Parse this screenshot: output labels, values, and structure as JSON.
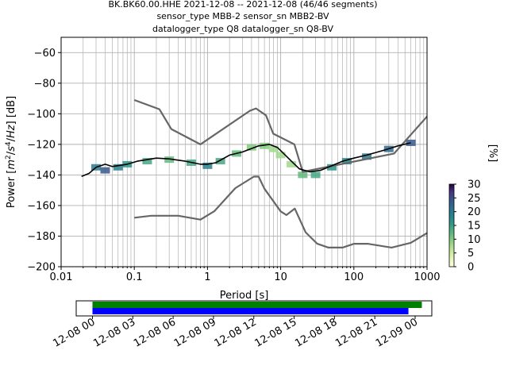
{
  "title": {
    "line1": "BK.BK60.00.HHE   2021-12-08 -- 2021-12-08  (46/46 segments)",
    "line2": "sensor_type MBB-2 sensor_sn MBB2-BV",
    "line3": "datalogger_type Q8 datalogger_sn Q8-BV"
  },
  "chart_data": [
    {
      "type": "heatmap",
      "xlabel": "Period [s]",
      "xscale": "log",
      "xlim": [
        0.01,
        1000
      ],
      "xticks": [
        {
          "value": 0.01,
          "label": "0.01"
        },
        {
          "value": 0.1,
          "label": "0.1"
        },
        {
          "value": 1,
          "label": "1"
        },
        {
          "value": 10,
          "label": "10"
        },
        {
          "value": 100,
          "label": "100"
        },
        {
          "value": 1000,
          "label": "1000"
        }
      ],
      "ylim": [
        -200,
        -50
      ],
      "yticks": [
        {
          "value": -60,
          "label": "−60"
        },
        {
          "value": -80,
          "label": "−80"
        },
        {
          "value": -100,
          "label": "−100"
        },
        {
          "value": -120,
          "label": "−120"
        },
        {
          "value": -140,
          "label": "−140"
        },
        {
          "value": -160,
          "label": "−160"
        },
        {
          "value": -180,
          "label": "−180"
        },
        {
          "value": -200,
          "label": "−200"
        }
      ],
      "grid": true,
      "colorbar": {
        "label": "[%]",
        "range": [
          0,
          30
        ],
        "ticks": [
          {
            "value": 0,
            "label": "0"
          },
          {
            "value": 5,
            "label": "5"
          },
          {
            "value": 10,
            "label": "10"
          },
          {
            "value": 15,
            "label": "15"
          },
          {
            "value": 20,
            "label": "20"
          },
          {
            "value": 25,
            "label": "25"
          },
          {
            "value": 30,
            "label": "30"
          }
        ],
        "colormap": "viridis_white_reversed"
      },
      "series": [
        {
          "role": "high-noise-model",
          "color": "#666666",
          "points": [
            [
              0.1,
              -91
            ],
            [
              0.22,
              -97
            ],
            [
              0.32,
              -110
            ],
            [
              0.8,
              -120
            ],
            [
              3.8,
              -98
            ],
            [
              4.6,
              -96.5
            ],
            [
              6.3,
              -101
            ],
            [
              7.9,
              -113
            ],
            [
              15.4,
              -120
            ],
            [
              20,
              -138
            ],
            [
              354.8,
              -126
            ],
            [
              10000,
              -48
            ]
          ]
        },
        {
          "role": "low-noise-model",
          "color": "#666666",
          "points": [
            [
              0.1,
              -168
            ],
            [
              0.17,
              -166.7
            ],
            [
              0.4,
              -166.7
            ],
            [
              0.8,
              -169.2
            ],
            [
              1.24,
              -163.7
            ],
            [
              2.4,
              -148.6
            ],
            [
              4.3,
              -141.1
            ],
            [
              5,
              -141.1
            ],
            [
              6,
              -149
            ],
            [
              10,
              -163.8
            ],
            [
              12,
              -166.2
            ],
            [
              15.6,
              -162
            ],
            [
              21.9,
              -177.5
            ],
            [
              31.6,
              -185
            ],
            [
              45,
              -187.5
            ],
            [
              70,
              -187.5
            ],
            [
              101,
              -185
            ],
            [
              154,
              -185
            ],
            [
              328,
              -187.5
            ],
            [
              600,
              -184.4
            ],
            [
              1000,
              -178
            ]
          ]
        },
        {
          "role": "mode",
          "color": "#000000",
          "points": [
            [
              0.019,
              -141
            ],
            [
              0.024,
              -139
            ],
            [
              0.03,
              -135
            ],
            [
              0.04,
              -133
            ],
            [
              0.05,
              -134.5
            ],
            [
              0.08,
              -133
            ],
            [
              0.11,
              -131
            ],
            [
              0.15,
              -130
            ],
            [
              0.2,
              -129
            ],
            [
              0.3,
              -129.5
            ],
            [
              0.5,
              -131
            ],
            [
              0.8,
              -133
            ],
            [
              1,
              -133
            ],
            [
              1.3,
              -132
            ],
            [
              2,
              -127
            ],
            [
              3,
              -125
            ],
            [
              5,
              -121
            ],
            [
              7,
              -120
            ],
            [
              9,
              -122
            ],
            [
              11,
              -126
            ],
            [
              14,
              -131
            ],
            [
              18,
              -136
            ],
            [
              25,
              -138
            ],
            [
              35,
              -137
            ],
            [
              50,
              -134
            ],
            [
              70,
              -131
            ],
            [
              100,
              -129
            ],
            [
              150,
              -127
            ],
            [
              250,
              -124
            ],
            [
              400,
              -121
            ],
            [
              600,
              -119
            ]
          ]
        }
      ],
      "cells": [
        {
          "x": 0.03,
          "y": -135,
          "pct": 20
        },
        {
          "x": 0.04,
          "y": -137,
          "pct": 24
        },
        {
          "x": 0.06,
          "y": -135,
          "pct": 19
        },
        {
          "x": 0.08,
          "y": -133,
          "pct": 16
        },
        {
          "x": 0.15,
          "y": -131,
          "pct": 14
        },
        {
          "x": 0.3,
          "y": -130,
          "pct": 12
        },
        {
          "x": 0.6,
          "y": -132,
          "pct": 14
        },
        {
          "x": 1,
          "y": -134,
          "pct": 19
        },
        {
          "x": 1.5,
          "y": -131,
          "pct": 14
        },
        {
          "x": 2.5,
          "y": -126,
          "pct": 12
        },
        {
          "x": 4,
          "y": -122,
          "pct": 10
        },
        {
          "x": 6,
          "y": -121,
          "pct": 10
        },
        {
          "x": 8,
          "y": -123,
          "pct": 8
        },
        {
          "x": 10,
          "y": -127,
          "pct": 8
        },
        {
          "x": 14,
          "y": -133,
          "pct": 8
        },
        {
          "x": 20,
          "y": -140,
          "pct": 12
        },
        {
          "x": 30,
          "y": -140,
          "pct": 14
        },
        {
          "x": 50,
          "y": -135,
          "pct": 16
        },
        {
          "x": 80,
          "y": -131,
          "pct": 18
        },
        {
          "x": 150,
          "y": -128,
          "pct": 20
        },
        {
          "x": 300,
          "y": -123,
          "pct": 22
        },
        {
          "x": 600,
          "y": -119,
          "pct": 24
        }
      ]
    },
    {
      "type": "timeline",
      "xlim": [
        "12-08 00",
        "12-09 03"
      ],
      "xticks": [
        "12-08 00",
        "12-08 03",
        "12-08 06",
        "12-08 09",
        "12-08 12",
        "12-08 15",
        "12-08 18",
        "12-08 21",
        "12-09 00"
      ],
      "bars": [
        {
          "name": "processed",
          "color": "#008000",
          "start_hours": 0,
          "end_hours": 24.5
        },
        {
          "name": "used",
          "color": "#0000ff",
          "start_hours": 0,
          "end_hours": 23.5
        }
      ]
    }
  ]
}
